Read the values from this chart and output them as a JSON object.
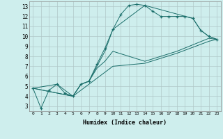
{
  "xlabel": "Humidex (Indice chaleur)",
  "background_color": "#ceeeed",
  "grid_color": "#b0c8c8",
  "line_color": "#1a6e6a",
  "xlim": [
    -0.5,
    23.5
  ],
  "ylim": [
    2.5,
    13.5
  ],
  "xticks": [
    0,
    1,
    2,
    3,
    4,
    5,
    6,
    7,
    8,
    9,
    10,
    11,
    12,
    13,
    14,
    15,
    16,
    17,
    18,
    19,
    20,
    21,
    22,
    23
  ],
  "yticks": [
    3,
    4,
    5,
    6,
    7,
    8,
    9,
    10,
    11,
    12,
    13
  ],
  "series": [
    {
      "x": [
        0,
        1,
        2,
        3,
        4,
        5,
        6,
        7,
        8,
        9,
        10,
        11,
        12,
        13,
        14,
        15,
        16,
        17,
        18,
        19,
        20,
        21,
        22,
        23
      ],
      "y": [
        4.8,
        2.8,
        4.6,
        5.2,
        4.3,
        4.0,
        5.2,
        5.5,
        7.2,
        8.8,
        10.7,
        12.2,
        13.1,
        13.2,
        13.1,
        12.5,
        12.0,
        12.0,
        12.0,
        12.0,
        11.8,
        10.6,
        10.0,
        9.7
      ],
      "marker": "+"
    },
    {
      "x": [
        0,
        3,
        5,
        6,
        7,
        8,
        9,
        10,
        14,
        20,
        21,
        22,
        23
      ],
      "y": [
        4.8,
        5.2,
        4.0,
        5.2,
        5.5,
        7.0,
        8.5,
        10.7,
        13.1,
        11.8,
        10.6,
        10.0,
        9.7
      ],
      "marker": null
    },
    {
      "x": [
        0,
        5,
        6,
        7,
        8,
        9,
        10,
        14,
        18,
        22,
        23
      ],
      "y": [
        4.8,
        4.0,
        5.2,
        5.5,
        6.8,
        7.5,
        8.5,
        7.5,
        8.5,
        9.8,
        9.7
      ],
      "marker": null
    },
    {
      "x": [
        0,
        5,
        10,
        14,
        18,
        22,
        23
      ],
      "y": [
        4.8,
        4.0,
        7.0,
        7.3,
        8.3,
        9.5,
        9.7
      ],
      "marker": null
    }
  ]
}
